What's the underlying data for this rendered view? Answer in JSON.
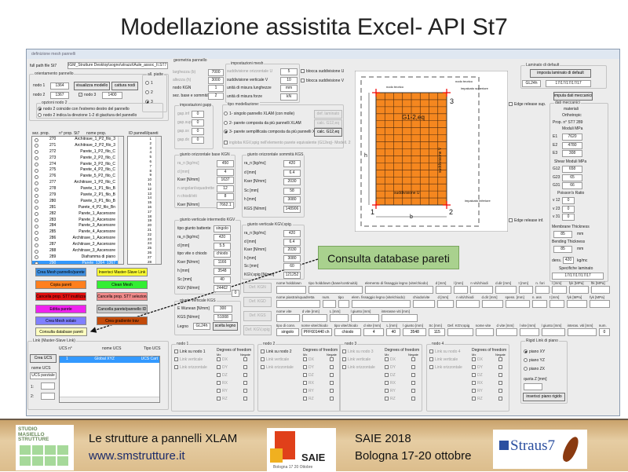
{
  "slide_title": "Modellazione assistita Excel- API St7",
  "window_title": "definizione mesh pannelli",
  "full_path": {
    "label": "full path file St7",
    "value": "IGM_Strutture Desktop\\sogno\\strazzi\\Aule_assoc_II.ST7"
  },
  "orientamento": {
    "legend": "orientamento pannello",
    "nodo1_label": "nodo 1",
    "nodo1": "1364",
    "nodo2_label": "nodo 2",
    "nodo2": "1367",
    "nodo3_label": "nodo 3",
    "nodo3": "1400",
    "nodo3_checked": true,
    "visualizza": "visualizza modello",
    "cattura": "cattura nodi",
    "opzioni_legend": "opzioni nodo 2",
    "opzioni": [
      {
        "label": "nodo 2 coincide con l'estremo destro del pannello",
        "checked": true
      },
      {
        "label": "nodo 2 indica la direzione 1-2 di giacitura del pannello",
        "checked": false
      }
    ]
  },
  "all_piatte": {
    "legend": "all. piatte",
    "options": [
      {
        "label": "1",
        "checked": false
      },
      {
        "label": "2",
        "checked": false
      },
      {
        "label": "3",
        "checked": true
      }
    ]
  },
  "geometria": {
    "legend": "geometria pannello",
    "rows": [
      {
        "label": "larghezza (b)",
        "value": "7000",
        "enabled": false
      },
      {
        "label": "altezza (h)",
        "value": "3000",
        "enabled": false
      },
      {
        "label": "nodo KGN",
        "value": "1",
        "enabled": true
      },
      {
        "label": "sez. base e sommità",
        "value": "2",
        "enabled": true
      }
    ]
  },
  "mesh": {
    "legend": "impostazioni mesh",
    "rows": [
      {
        "label": "suddivisione orizzontale U",
        "value": "5",
        "enabled": false
      },
      {
        "label": "suddivisione verticale V",
        "value": "10",
        "enabled": true
      },
      {
        "label": "unità di misura lunghezze",
        "value": "mm",
        "enabled": true
      },
      {
        "label": "unità di misura forze",
        "value": "kN",
        "enabled": true
      }
    ],
    "blocca_u": "blocca suddivisione U",
    "blocca_v": "blocca suddivisione V"
  },
  "gap": {
    "legend": "impostazioni gapp",
    "rows": [
      {
        "label": "gap.inf",
        "value": "0",
        "enabled": false
      },
      {
        "label": "gap.sup",
        "value": "0",
        "enabled": false
      },
      {
        "label": "gap.sx",
        "value": "0",
        "enabled": false
      },
      {
        "label": "gap.dx",
        "value": "0",
        "enabled": false
      }
    ]
  },
  "modellazione": {
    "legend": "tipo modellazione:",
    "options": [
      {
        "label": "1- singolo pannello XLAM (con molle)",
        "checked": false,
        "button": "def. laminato",
        "enabled": false
      },
      {
        "label": "2- parete composta da più pannelli XLAM",
        "checked": false,
        "button": "calc. G12,eq",
        "enabled": false
      },
      {
        "label": "3- parete semplificata composta da più pannelli XLAM",
        "checked": true,
        "button": "calc. G12,eq",
        "enabled": true
      }
    ],
    "ingloba": "ingloba KGV,spig nell'elemento parete equivalente (G12eq)- Modell. 2"
  },
  "kgn": {
    "legend": "giunto orizzontale base KGN",
    "rows": [
      {
        "label": "ra_n [kg/mc]",
        "value": "450",
        "enabled": false
      },
      {
        "label": "d [mm]",
        "value": "4",
        "enabled": false
      },
      {
        "label": "Kser [N/mm]",
        "value": "1637",
        "enabled": true
      },
      {
        "label": "n angolari/squadrette",
        "value": "12",
        "enabled": false
      },
      {
        "label": "n chiodi/viti",
        "value": "8",
        "enabled": false
      },
      {
        "label": "Kser [N/mm]",
        "value": "7662.1",
        "enabled": true
      }
    ]
  },
  "kgs": {
    "legend": "giunto orizzontale sommità KGS",
    "rows": [
      {
        "label": "ra_n [kg/mc]",
        "value": "420",
        "enabled": true
      },
      {
        "label": "d [mm]",
        "value": "6.4",
        "enabled": true
      },
      {
        "label": "Kser [N/mm]",
        "value": "2030",
        "enabled": true
      },
      {
        "label": "Sc [mm]",
        "value": "58",
        "enabled": true
      },
      {
        "label": "h [mm]",
        "value": "3080",
        "enabled": true
      },
      {
        "label": "KGS [N/mm]",
        "value": "148906",
        "enabled": true
      }
    ]
  },
  "kgv": {
    "legend": "giunto verticale intermedio KGV",
    "rows": [
      {
        "label": "tipo giunto battente",
        "value": "singolo",
        "enabled": true
      },
      {
        "label": "ra_n [kg/mc]",
        "value": "420",
        "enabled": true
      },
      {
        "label": "d [mm]",
        "value": "5.5",
        "enabled": true
      },
      {
        "label": "tipo vite o chiodo",
        "value": "chiodo",
        "enabled": true
      },
      {
        "label": "Kser [N/mm]",
        "value": "1166",
        "enabled": true
      },
      {
        "label": "h [mm]",
        "value": "3548",
        "enabled": true
      },
      {
        "label": "Sc [mm]",
        "value": "40",
        "enabled": true
      },
      {
        "label": "KGV [N/mm]",
        "value": "24462",
        "enabled": true
      }
    ],
    "extra": "0"
  },
  "kgs2": {
    "legend": "giunto verticale KGS",
    "rows": [
      {
        "label": "E Wunean [N/mm]",
        "value": "300",
        "enabled": true
      },
      {
        "label": "KGS [N/mm]",
        "value": "51008",
        "enabled": true
      }
    ],
    "legno_label": "Legno",
    "legno": "GL24h",
    "scelta": "scelta legno"
  },
  "kgvspig": {
    "legend": "giunto verticale KGV,spig.",
    "rows": [
      {
        "label": "ra_n [kg/mc]",
        "value": "420",
        "enabled": true
      },
      {
        "label": "d [mm]",
        "value": "6.4",
        "enabled": true
      },
      {
        "label": "Kser [N/mm]",
        "value": "2030",
        "enabled": true
      },
      {
        "label": "h [mm]",
        "value": "3080",
        "enabled": true
      },
      {
        "label": "Sc [mm]",
        "value": "60",
        "enabled": true
      },
      {
        "label": "KGV,spig [N/mm]",
        "value": "121252",
        "enabled": true
      }
    ]
  },
  "def_buttons": [
    "Def. KGN",
    "Def. KGD",
    "Def. KGS",
    "Def. KGV,spig"
  ],
  "holddown": [
    [
      {
        "label": "nome holddown",
        "value": ""
      },
      {
        "label": "tipo holddown (base/continuità)",
        "value": ""
      },
      {
        "label": "elemento di fissaggio legno (vite/chiodo)",
        "value": ""
      },
      {
        "label": "d [mm]",
        "value": ""
      },
      {
        "label": "l [mm]",
        "value": ""
      },
      {
        "label": "n viti/chiodi",
        "value": ""
      },
      {
        "label": "d.dir [mm]",
        "value": ""
      },
      {
        "label": "t [mm]",
        "value": ""
      },
      {
        "label": "n. fori",
        "value": ""
      },
      {
        "label": "l [mm]",
        "value": ""
      },
      {
        "label": "fyk [MPa]",
        "value": ""
      },
      {
        "label": "ftk [MPa]",
        "value": ""
      }
    ],
    [
      {
        "label": "nome piastra/squadretta",
        "value": ""
      },
      {
        "label": "num.",
        "value": ""
      },
      {
        "label": "tipo",
        "value": ""
      },
      {
        "label": "elem. fissaggio legno (vite/chiodo)",
        "value": ""
      },
      {
        "label": "chiodo/vite",
        "value": ""
      },
      {
        "label": "d [mm]",
        "value": ""
      },
      {
        "label": "n viti/chiodi",
        "value": ""
      },
      {
        "label": "d.dir [mm]",
        "value": ""
      },
      {
        "label": "spess. [mm]",
        "value": ""
      },
      {
        "label": "n. ass",
        "value": ""
      },
      {
        "label": "t [mm]",
        "value": ""
      },
      {
        "label": "fyk [MPa]",
        "value": ""
      },
      {
        "label": "fyk [MPa]",
        "value": ""
      }
    ],
    [
      {
        "label": "nome vite",
        "value": ""
      },
      {
        "label": "d vite [mm]",
        "value": ""
      },
      {
        "label": "L [mm]",
        "value": ""
      },
      {
        "label": "l giunto [mm]",
        "value": ""
      },
      {
        "label": "interasse viti [mm]",
        "value": ""
      }
    ],
    [
      {
        "label": "tipo di conn.",
        "value": "singolo"
      },
      {
        "label": "nome vite/chiodo",
        "value": "PFF601440 ch"
      },
      {
        "label": "tipo vite/chiodo",
        "value": "chiodo"
      },
      {
        "label": "d vite [mm]",
        "value": "4"
      },
      {
        "label": "L [mm]",
        "value": "40"
      },
      {
        "label": "l giunto [mm]",
        "value": "3548"
      },
      {
        "label": "Sc [mm]",
        "value": "115"
      },
      {
        "label": "Def. KGV,spig",
        "value": ""
      },
      {
        "label": "nome vite",
        "value": ""
      },
      {
        "label": "d vite [mm]",
        "value": ""
      },
      {
        "label": "l vite [mm]",
        "value": ""
      },
      {
        "label": "l giunto [mm]",
        "value": ""
      },
      {
        "label": "interas. viti [mm]",
        "value": ""
      },
      {
        "label": "num.",
        "value": "0"
      }
    ]
  ],
  "diagram": {
    "nodo_teorico": "nodo teorico",
    "nodo_teorico2": "nodo teorico",
    "impalcato_sup": "impalcato superiore",
    "impalcato_inf": "impalcato inferiore",
    "g_label": "G1-2,eq",
    "sudd_v": "suddivisione V",
    "sudd_u": "suddivisione U",
    "h": "h",
    "b": "b",
    "n1": "1",
    "n2": "2",
    "n3": "3",
    "fill": "#f5871f",
    "cols": 8,
    "rows": 16
  },
  "edge_sup": "Edge release sup.",
  "edge_inf": "Edge release inf.",
  "laminato": {
    "legend": "Laminato di default",
    "button": "imposta laminato di default",
    "legno": "GL24h",
    "strati": "17/17/17/17/17",
    "imputa": "imputa dati meccanici"
  },
  "dati_meccanici": {
    "legend": "dati meccanici",
    "materiali": "materiali",
    "tipo": "Orthotropic",
    "prop": "Prop. n° ST7 289",
    "moduli": "Moduli MPa",
    "E": [
      {
        "label": "E1",
        "value": "7620"
      },
      {
        "label": "E2",
        "value": "4780"
      },
      {
        "label": "E3",
        "value": "308"
      }
    ],
    "shear": "Shear Moduli MPa",
    "G": [
      {
        "label": "G12",
        "value": "658"
      },
      {
        "label": "G23",
        "value": "65"
      },
      {
        "label": "G31",
        "value": "66"
      }
    ],
    "poisson": "Poisson's Ratio",
    "v": [
      {
        "label": "v 12",
        "value": "0"
      },
      {
        "label": "v 23",
        "value": "0"
      },
      {
        "label": "v 31",
        "value": "0"
      }
    ],
    "membrane": "Membrane Thickness",
    "membrane_val": "85",
    "bending": "Bending Thickness",
    "bending_val": "85",
    "mm": "mm",
    "dens_label": "dens.",
    "dens": "420",
    "dens_unit": "kg/mc",
    "specifiche": "Specifiche laminato",
    "specifiche_val": "17/17/17/17/17"
  },
  "props": {
    "headers": [
      "sez. prop.",
      "n° prop. St7",
      "nome prop."
    ],
    "items": [
      {
        "n": "270",
        "name": "Architrave_1_P2_filo_3"
      },
      {
        "n": "271",
        "name": "Architrave_2_P2_filo_3"
      },
      {
        "n": "272",
        "name": "Parete_1_P2_filo_C"
      },
      {
        "n": "273",
        "name": "Parete_2_P2_filo_C"
      },
      {
        "n": "274",
        "name": "Parete_3_P2_filo_C"
      },
      {
        "n": "275",
        "name": "Parete_4_P2_filo_C"
      },
      {
        "n": "276",
        "name": "Parete_5_P2_filo_C"
      },
      {
        "n": "277",
        "name": "Architrave_1_P2_filo_C"
      },
      {
        "n": "278",
        "name": "Parete_1_P1_filo_B"
      },
      {
        "n": "279",
        "name": "Parete_2_P1_filo_B"
      },
      {
        "n": "280",
        "name": "Parete_3_P1_filo_B"
      },
      {
        "n": "281",
        "name": "Parete_4_P2_filo_Bn"
      },
      {
        "n": "282",
        "name": "Parete_1_Ascensore"
      },
      {
        "n": "283",
        "name": "Parete_2_Ascensore"
      },
      {
        "n": "284",
        "name": "Parete_3_Ascensore"
      },
      {
        "n": "285",
        "name": "Parete_4_Ascensore"
      },
      {
        "n": "286",
        "name": "Architrave_1_Ascensore"
      },
      {
        "n": "287",
        "name": "Architrave_2_Ascensore"
      },
      {
        "n": "288",
        "name": "Architrave_3_Ascensore"
      },
      {
        "n": "289",
        "name": "Diaframma di piano"
      },
      {
        "n": "290",
        "name": "Parete_1364_1367",
        "selected": true
      }
    ]
  },
  "ids": {
    "header": "ID pannelli/pareti",
    "items": [
      "1",
      "2",
      "3",
      "4",
      "5",
      "6",
      "7",
      "8",
      "9",
      "10",
      "11",
      "12",
      "13",
      "14",
      "15",
      "16",
      "17",
      "18",
      "19",
      "20",
      "21",
      "22",
      "23",
      "24",
      "25",
      "26",
      "27",
      "28"
    ]
  },
  "color_buttons": [
    {
      "label": "Crea Mesh pannello/parete",
      "color": "#3f8fe0"
    },
    {
      "label": "Inserisci Master-Slave Link",
      "color": "#ffff33"
    },
    {
      "label": "Copia pareti",
      "color": "#ff7f1e"
    },
    {
      "label": "Clean Mesh",
      "color": "#33ee33"
    },
    {
      "label": "Cancella prop. ST7 inutilizzate",
      "color": "#e01010"
    },
    {
      "label": "Cancella prop. ST7 selezionata",
      "color": "#f08a8a"
    },
    {
      "label": "Editta parete",
      "color": "#ee22ee"
    },
    {
      "label": "Cancella parete/pannello ID",
      "color": "#c8c8c8"
    },
    {
      "label": "Crea Mesh solaio",
      "color": "#7f7fff"
    },
    {
      "label": "Crea gradiente trav",
      "color": "#c24a0a"
    }
  ],
  "consulta": {
    "label": "Consulta database pareti",
    "color": "#ffffc0"
  },
  "callout": "Consulta database pareti",
  "link": {
    "legend": "Link (Master-Slave Link)",
    "crea": "Crea UCS",
    "ucs_n": "UCS n°",
    "nome_ucs": "nome UCS",
    "tipo_ucs": "Tipo UCS",
    "nome_label": "nome UCS",
    "nome_value": "UCS parziale",
    "l1": "1:",
    "l2": "2:",
    "row": {
      "n": "1",
      "nome": "Global XYZ",
      "tipo": "UCS Cart"
    }
  },
  "nodes": [
    {
      "legend": "nodo 1",
      "link": "Link su nodo 1",
      "enabled": true
    },
    {
      "legend": "nodo 2",
      "link": "Link su nodo 2",
      "enabled": true
    },
    {
      "legend": "nodo 3",
      "link": "Link su nodo 3",
      "enabled": false
    },
    {
      "legend": "nodo 4",
      "link": "Link su nodo 4",
      "enabled": false
    }
  ],
  "node_common": {
    "verticale": "Link verticale",
    "orizzontale": "Link orizzontale",
    "dof": "Degrees of freedom",
    "mx": "Mx",
    "negate": "Negate",
    "dofs": [
      "DX",
      "DY",
      "DZ",
      "RX",
      "RY",
      "RZ"
    ]
  },
  "rigid": {
    "legend": "Rigid Link di piano",
    "options": [
      {
        "label": "piano XY",
        "checked": true
      },
      {
        "label": "piano YZ",
        "checked": false
      },
      {
        "label": "piano ZX",
        "checked": false
      }
    ],
    "quota": "quota   Z [mm]",
    "quota_value": "",
    "button": "inserisci piano rigido"
  },
  "footer": {
    "studio": "STUDIO MASIELLO STRUTTURE",
    "line1": "Le strutture a pannelli XLAM",
    "url": "www.smstrutture.it",
    "saie_logo": "SAIE Bologna 17 20 Ottobre",
    "saie": "SAIE 2018",
    "bologna": "Bologna 17-20 ottobre",
    "straus": "Straus7"
  }
}
